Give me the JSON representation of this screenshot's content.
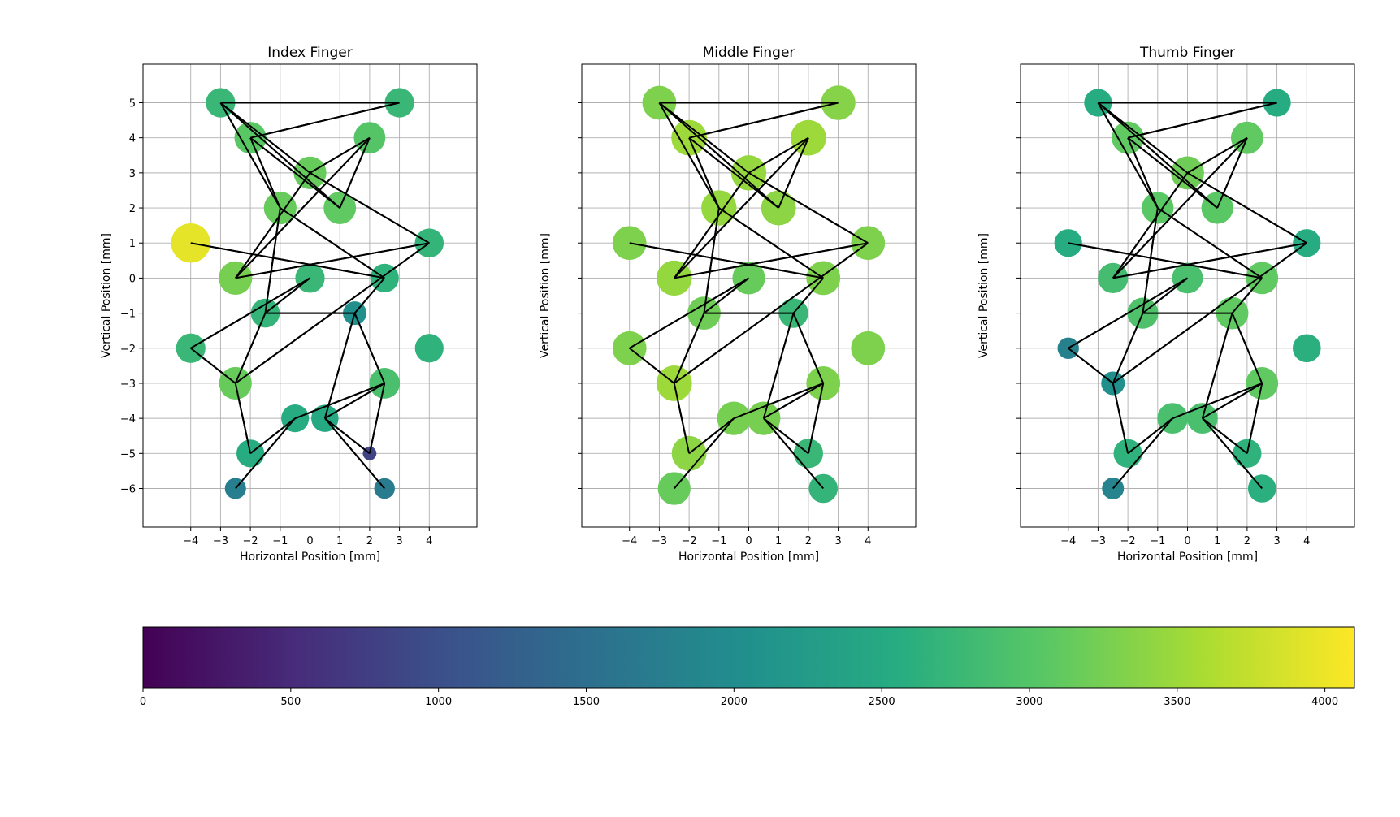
{
  "chart_data": [
    {
      "type": "scatter",
      "title": "Index Finger",
      "xlabel": "Horizontal Position [mm]",
      "ylabel": "Vertical Position [mm]",
      "xticks": [
        -4,
        -3,
        -2,
        -1,
        0,
        1,
        2,
        3,
        4
      ],
      "yticks": [
        -6,
        -5,
        -4,
        -3,
        -2,
        -1,
        0,
        1,
        2,
        3,
        4,
        5
      ],
      "xlim": [
        -5.6,
        5.6
      ],
      "ylim": [
        -7.1,
        6.1
      ],
      "grid": true,
      "points": [
        {
          "x": -3,
          "y": 5,
          "value": 2750
        },
        {
          "x": 3,
          "y": 5,
          "value": 2750
        },
        {
          "x": -2,
          "y": 4,
          "value": 3050
        },
        {
          "x": 2,
          "y": 4,
          "value": 3000
        },
        {
          "x": 0,
          "y": 3,
          "value": 3150
        },
        {
          "x": -1,
          "y": 2,
          "value": 3150
        },
        {
          "x": 1,
          "y": 2,
          "value": 3100
        },
        {
          "x": -4,
          "y": 1,
          "value": 3950
        },
        {
          "x": 4,
          "y": 1,
          "value": 2700
        },
        {
          "x": -2.5,
          "y": 0,
          "value": 3250
        },
        {
          "x": 0,
          "y": 0,
          "value": 2750
        },
        {
          "x": 2.5,
          "y": 0,
          "value": 2650
        },
        {
          "x": -1.5,
          "y": -1,
          "value": 2700
        },
        {
          "x": 1.5,
          "y": -1,
          "value": 2050
        },
        {
          "x": -4,
          "y": -2,
          "value": 2750
        },
        {
          "x": 4,
          "y": -2,
          "value": 2650
        },
        {
          "x": -2.5,
          "y": -3,
          "value": 3150
        },
        {
          "x": 2.5,
          "y": -3,
          "value": 2900
        },
        {
          "x": -0.5,
          "y": -4,
          "value": 2550
        },
        {
          "x": 0.5,
          "y": -4,
          "value": 2500
        },
        {
          "x": -2,
          "y": -5,
          "value": 2550
        },
        {
          "x": 2,
          "y": -5,
          "value": 850
        },
        {
          "x": -2.5,
          "y": -6,
          "value": 1750
        },
        {
          "x": 2.5,
          "y": -6,
          "value": 1700
        }
      ]
    },
    {
      "type": "scatter",
      "title": "Middle Finger",
      "xlabel": "Horizontal Position [mm]",
      "ylabel": "Vertical Position [mm]",
      "xticks": [
        -4,
        -3,
        -2,
        -1,
        0,
        1,
        2,
        3,
        4
      ],
      "yticks": [
        -6,
        -5,
        -4,
        -3,
        -2,
        -1,
        0,
        1,
        2,
        3,
        4,
        5
      ],
      "xlim": [
        -5.6,
        5.6
      ],
      "ylim": [
        -7.1,
        6.1
      ],
      "grid": true,
      "points": [
        {
          "x": -3,
          "y": 5,
          "value": 3300
        },
        {
          "x": 3,
          "y": 5,
          "value": 3350
        },
        {
          "x": -2,
          "y": 4,
          "value": 3500
        },
        {
          "x": 2,
          "y": 4,
          "value": 3500
        },
        {
          "x": 0,
          "y": 3,
          "value": 3450
        },
        {
          "x": -1,
          "y": 2,
          "value": 3450
        },
        {
          "x": 1,
          "y": 2,
          "value": 3400
        },
        {
          "x": -4,
          "y": 1,
          "value": 3300
        },
        {
          "x": 4,
          "y": 1,
          "value": 3300
        },
        {
          "x": -2.5,
          "y": 0,
          "value": 3450
        },
        {
          "x": 0,
          "y": 0,
          "value": 3150
        },
        {
          "x": 2.5,
          "y": 0,
          "value": 3300
        },
        {
          "x": -1.5,
          "y": -1,
          "value": 3200
        },
        {
          "x": 1.5,
          "y": -1,
          "value": 2750
        },
        {
          "x": -4,
          "y": -2,
          "value": 3300
        },
        {
          "x": 4,
          "y": -2,
          "value": 3300
        },
        {
          "x": -2.5,
          "y": -3,
          "value": 3500
        },
        {
          "x": 2.5,
          "y": -3,
          "value": 3300
        },
        {
          "x": -0.5,
          "y": -4,
          "value": 3250
        },
        {
          "x": 0.5,
          "y": -4,
          "value": 3250
        },
        {
          "x": -2,
          "y": -5,
          "value": 3400
        },
        {
          "x": 2,
          "y": -5,
          "value": 2750
        },
        {
          "x": -2.5,
          "y": -6,
          "value": 3150
        },
        {
          "x": 2.5,
          "y": -6,
          "value": 2700
        }
      ]
    },
    {
      "type": "scatter",
      "title": "Thumb Finger",
      "xlabel": "Horizontal Position [mm]",
      "ylabel": "Vertical Position [mm]",
      "xticks": [
        -4,
        -3,
        -2,
        -1,
        0,
        1,
        2,
        3,
        4
      ],
      "yticks": [
        -6,
        -5,
        -4,
        -3,
        -2,
        -1,
        0,
        1,
        2,
        3,
        4,
        5
      ],
      "xlim": [
        -5.6,
        5.6
      ],
      "ylim": [
        -7.1,
        6.1
      ],
      "grid": true,
      "points": [
        {
          "x": -3,
          "y": 5,
          "value": 2550
        },
        {
          "x": 3,
          "y": 5,
          "value": 2550
        },
        {
          "x": -2,
          "y": 4,
          "value": 3100
        },
        {
          "x": 2,
          "y": 4,
          "value": 3100
        },
        {
          "x": 0,
          "y": 3,
          "value": 3200
        },
        {
          "x": -1,
          "y": 2,
          "value": 3050
        },
        {
          "x": 1,
          "y": 2,
          "value": 3050
        },
        {
          "x": -4,
          "y": 1,
          "value": 2550
        },
        {
          "x": 4,
          "y": 1,
          "value": 2550
        },
        {
          "x": -2.5,
          "y": 0,
          "value": 2850
        },
        {
          "x": 0,
          "y": 0,
          "value": 2900
        },
        {
          "x": 2.5,
          "y": 0,
          "value": 3100
        },
        {
          "x": -1.5,
          "y": -1,
          "value": 2950
        },
        {
          "x": 1.5,
          "y": -1,
          "value": 3100
        },
        {
          "x": -4,
          "y": -2,
          "value": 1800
        },
        {
          "x": 4,
          "y": -2,
          "value": 2600
        },
        {
          "x": -2.5,
          "y": -3,
          "value": 2050
        },
        {
          "x": 2.5,
          "y": -3,
          "value": 3100
        },
        {
          "x": -0.5,
          "y": -4,
          "value": 2900
        },
        {
          "x": 0.5,
          "y": -4,
          "value": 2900
        },
        {
          "x": -2,
          "y": -5,
          "value": 2650
        },
        {
          "x": 2,
          "y": -5,
          "value": 2650
        },
        {
          "x": -2.5,
          "y": -6,
          "value": 1850
        },
        {
          "x": 2.5,
          "y": -6,
          "value": 2600
        }
      ]
    }
  ],
  "edges": [
    [
      0,
      1
    ],
    [
      3,
      4
    ],
    [
      11,
      7
    ],
    [
      2,
      1
    ],
    [
      9,
      8
    ],
    [
      8,
      16
    ],
    [
      0,
      4
    ],
    [
      0,
      5
    ],
    [
      0,
      6
    ],
    [
      4,
      8
    ],
    [
      4,
      9
    ],
    [
      3,
      9
    ],
    [
      3,
      6
    ],
    [
      2,
      6
    ],
    [
      2,
      5
    ],
    [
      5,
      11
    ],
    [
      5,
      12
    ],
    [
      12,
      13
    ],
    [
      12,
      16
    ],
    [
      13,
      17
    ],
    [
      10,
      12
    ],
    [
      10,
      14
    ],
    [
      14,
      16
    ],
    [
      11,
      13
    ],
    [
      13,
      19
    ],
    [
      17,
      18
    ],
    [
      17,
      19
    ],
    [
      16,
      20
    ],
    [
      17,
      21
    ],
    [
      18,
      20
    ],
    [
      19,
      21
    ],
    [
      19,
      23
    ],
    [
      18,
      22
    ]
  ],
  "colorbar": {
    "min": 0,
    "max": 4100,
    "ticks": [
      0,
      500,
      1000,
      1500,
      2000,
      2500,
      3000,
      3500,
      4000
    ],
    "colormap": "viridis"
  }
}
